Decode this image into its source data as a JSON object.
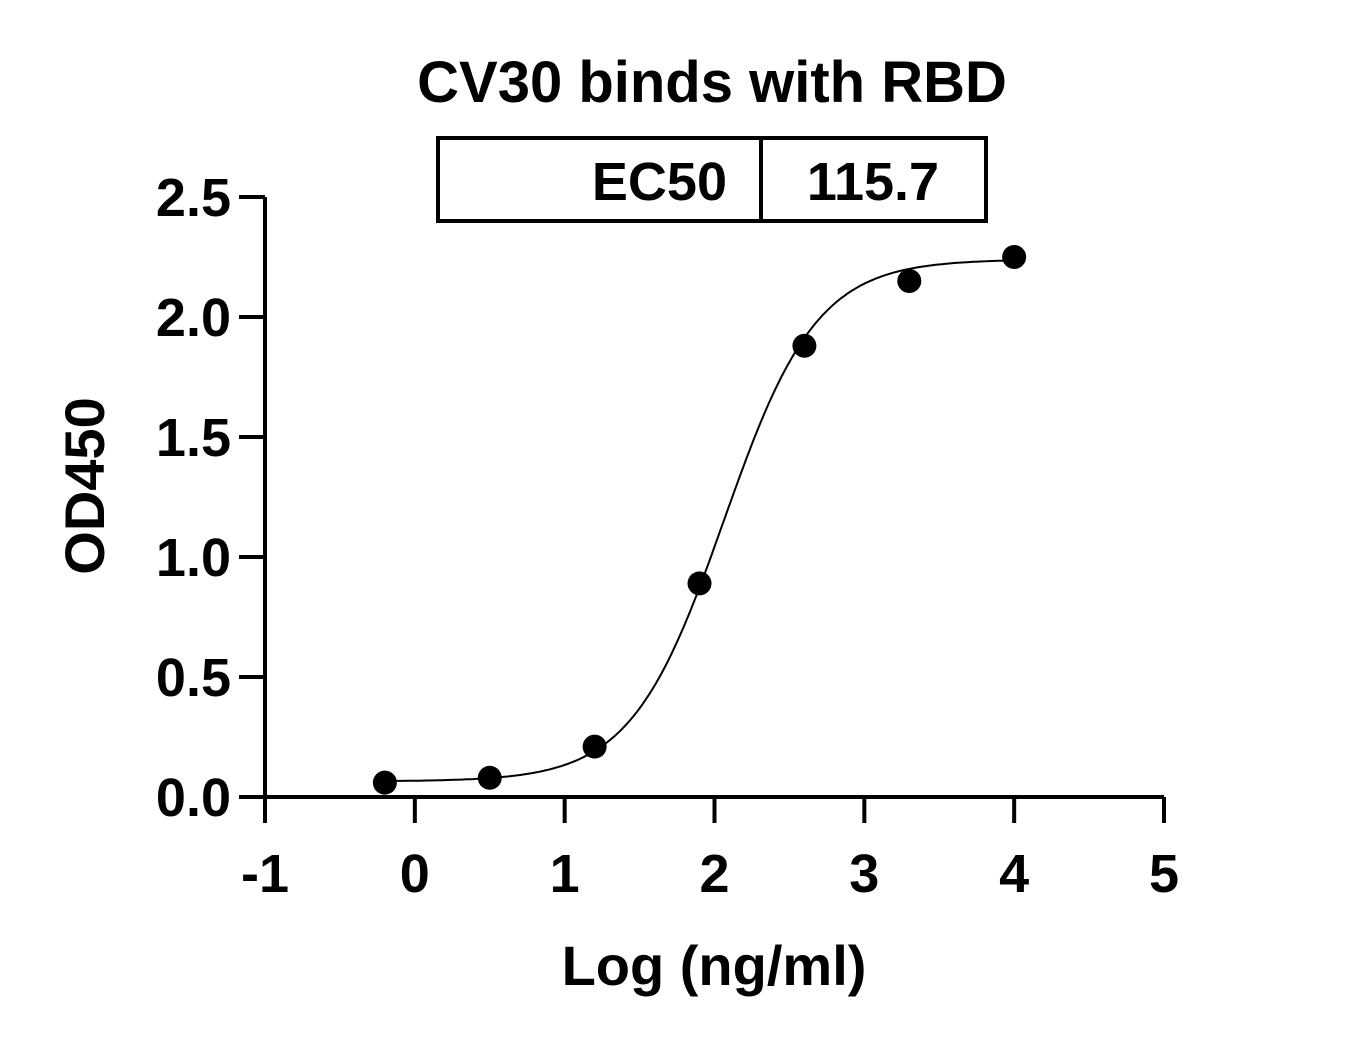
{
  "chart_data": {
    "type": "scatter",
    "title": "CV30 binds with RBD",
    "xlabel": "Log (ng/ml)",
    "ylabel": "OD450",
    "xlim": [
      -1,
      5
    ],
    "ylim": [
      0,
      2.5
    ],
    "x_ticks": [
      -1,
      0,
      1,
      2,
      3,
      4,
      5
    ],
    "y_ticks": [
      0.0,
      0.5,
      1.0,
      1.5,
      2.0,
      2.5
    ],
    "x_tick_labels": [
      "-1",
      "0",
      "1",
      "2",
      "3",
      "4",
      "5"
    ],
    "y_tick_labels": [
      "0.0",
      "0.5",
      "1.0",
      "1.5",
      "2.0",
      "2.5"
    ],
    "grid": false,
    "series": [
      {
        "x": [
          -0.2,
          0.5,
          1.2,
          1.9,
          2.6,
          3.3,
          4.0
        ],
        "y": [
          0.06,
          0.08,
          0.21,
          0.89,
          1.88,
          2.15,
          2.25
        ]
      }
    ],
    "fit_curve": {
      "model": "4PL",
      "bottom": 0.065,
      "top": 2.24,
      "log_ec50": 2.063,
      "hill_slope": 1.4,
      "x_range": [
        -0.2,
        4.0
      ]
    },
    "ec50_table": {
      "label": "EC50",
      "value": "115.7"
    }
  },
  "colors": {
    "marker": "#000000",
    "line": "#000000",
    "background": "#ffffff"
  }
}
